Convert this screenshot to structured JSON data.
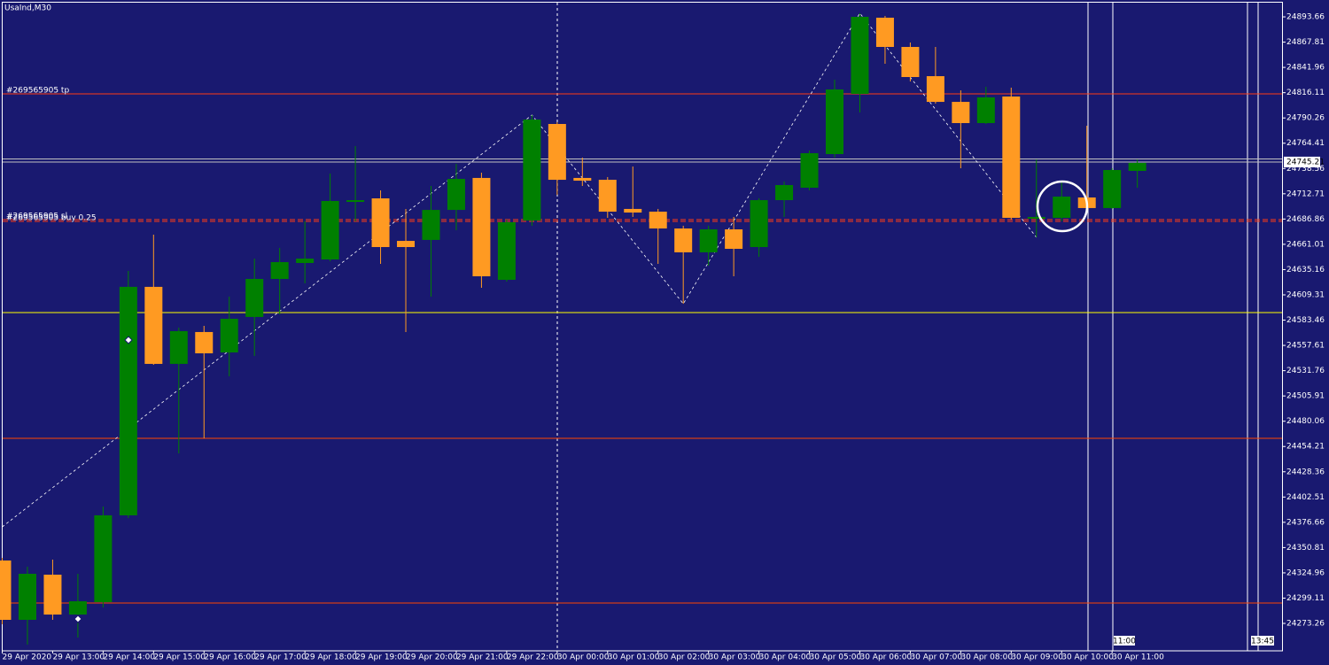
{
  "chart_data": {
    "type": "candlestick",
    "title": "UsaInd,M30",
    "categories": [
      "29 Apr 2020",
      null,
      "29 Apr 13:00",
      null,
      "29 Apr 14:00",
      null,
      "29 Apr 15:00",
      null,
      "29 Apr 16:00",
      null,
      "29 Apr 17:00",
      null,
      "29 Apr 18:00",
      null,
      "29 Apr 19:00",
      null,
      "29 Apr 20:00",
      null,
      "29 Apr 21:00",
      null,
      "29 Apr 22:00",
      null,
      "30 Apr 00:00",
      null,
      "30 Apr 01:00",
      null,
      "30 Apr 02:00",
      null,
      "30 Apr 03:00",
      null,
      "30 Apr 04:00",
      null,
      "30 Apr 05:00",
      null,
      "30 Apr 06:00",
      null,
      "30 Apr 07:00",
      null,
      "30 Apr 08:00",
      null,
      "30 Apr 09:00",
      null,
      "30 Apr 10:00",
      null,
      "30 Apr 11:00",
      null
    ],
    "open": [
      24337.6,
      24276.9,
      24323.1,
      24282.3,
      24295.0,
      24383.8,
      24617.5,
      24538.7,
      24571.3,
      24550.4,
      24586.7,
      24625.6,
      24641.9,
      24645.5,
      24704.4,
      24708.0,
      24664.5,
      24665.5,
      24696.2,
      24728.9,
      24624.7,
      24685.4,
      24784.1,
      24728.9,
      24727.0,
      24697.2,
      24694.4,
      24677.2,
      24652.8,
      24676.3,
      24658.2,
      24706.2,
      24718.9,
      24753.3,
      24814.9,
      24892.8,
      24862.9,
      24833.0,
      24806.7,
      24785.0,
      24812.2,
      24687.2,
      24688.1,
      24708.9,
      24698.1,
      24736.1
    ],
    "high": [
      24340.3,
      24331.3,
      24338.5,
      24324.0,
      24392.8,
      24633.8,
      24670.9,
      24575.8,
      24577.6,
      24607.5,
      24646.4,
      24657.3,
      24684.5,
      24733.4,
      24761.5,
      24716.2,
      24697.2,
      24720.7,
      24743.3,
      24734.3,
      24686.3,
      24793.2,
      24785.9,
      24749.7,
      24729.8,
      24740.6,
      24697.2,
      24680.0,
      24680.0,
      24689.0,
      24708.0,
      24725.2,
      24756.9,
      24829.4,
      24897.3,
      24894.6,
      24867.4,
      24862.9,
      24818.5,
      24822.1,
      24821.2,
      24747.9,
      24725.2,
      24782.3,
      24738.8,
      24747.9
    ],
    "low": [
      24272.4,
      24251.6,
      24276.9,
      24258.8,
      24289.6,
      24381.1,
      24537.8,
      24447.2,
      24462.6,
      24526.0,
      24546.8,
      24589.4,
      24621.1,
      24643.7,
      24684.5,
      24641.0,
      24571.3,
      24607.5,
      24675.4,
      24616.5,
      24622.9,
      24680.0,
      24711.6,
      24720.7,
      24688.1,
      24689.0,
      24641.0,
      24600.2,
      24639.2,
      24628.3,
      24648.2,
      24689.0,
      24716.2,
      24749.7,
      24795.9,
      24845.7,
      24827.6,
      24804.9,
      24738.8,
      24784.1,
      24686.3,
      24668.2,
      24684.5,
      24697.2,
      24697.2,
      24718.9
    ],
    "close": [
      24276.9,
      24324.0,
      24282.3,
      24295.9,
      24383.8,
      24617.5,
      24538.7,
      24572.2,
      24549.5,
      24584.8,
      24625.6,
      24642.8,
      24646.4,
      24705.3,
      24706.2,
      24658.2,
      24658.2,
      24696.2,
      24727.9,
      24628.3,
      24683.6,
      24788.6,
      24727.0,
      24726.1,
      24694.4,
      24693.5,
      24677.2,
      24652.8,
      24676.3,
      24656.4,
      24706.2,
      24721.6,
      24754.2,
      24819.4,
      24893.7,
      24862.9,
      24832.1,
      24806.7,
      24785.0,
      24811.3,
      24688.1,
      24689.0,
      24709.8,
      24698.1,
      24737.0,
      24744.3
    ],
    "up_color": "#008000",
    "down_color": "#ff9a22",
    "ylim": [
      24245.2,
      24910.9
    ],
    "yticks": [
      24893.66,
      24867.81,
      24841.96,
      24816.11,
      24790.26,
      24764.41,
      24738.56,
      24712.71,
      24686.86,
      24661.01,
      24635.16,
      24609.31,
      24583.46,
      24557.61,
      24531.76,
      24505.91,
      24480.06,
      24454.21,
      24428.36,
      24402.51,
      24376.66,
      24350.81,
      24324.96,
      24299.11,
      24273.26
    ],
    "zigzag": {
      "x": [
        0,
        21,
        27,
        34,
        41
      ],
      "values": [
        24372.0,
        24793.2,
        24600.2,
        24897.3,
        24668.2
      ],
      "color": "#ffffff"
    },
    "levels": [
      {
        "value": 24814.9,
        "color": "#ff3c14",
        "label": "#269565905 tp"
      },
      {
        "value": 24686.3,
        "color": "#ff3c14",
        "label": "#269565905 sl"
      },
      {
        "value": 24684.5,
        "color": "#ff3c14",
        "label": "#269565905 buy 0.25"
      },
      {
        "value": 24591.2,
        "color": "#ffff00"
      },
      {
        "value": 24462.6,
        "color": "#ff4500"
      },
      {
        "value": 24294.1,
        "color": "#ff4500"
      },
      {
        "value": 24748.3,
        "color": "#c0c0c0"
      },
      {
        "value": 24745.21,
        "color": "#c0c0c0"
      }
    ],
    "current_price": 24745.21,
    "time_markers": [
      "11:00",
      "13:45"
    ]
  }
}
